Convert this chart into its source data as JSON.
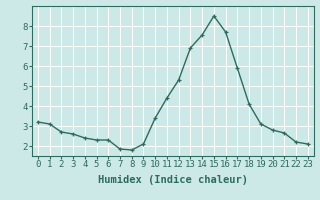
{
  "x": [
    0,
    1,
    2,
    3,
    4,
    5,
    6,
    7,
    8,
    9,
    10,
    11,
    12,
    13,
    14,
    15,
    16,
    17,
    18,
    19,
    20,
    21,
    22,
    23
  ],
  "y": [
    3.2,
    3.1,
    2.7,
    2.6,
    2.4,
    2.3,
    2.3,
    1.85,
    1.8,
    2.1,
    3.4,
    4.4,
    5.3,
    6.9,
    7.55,
    8.5,
    7.7,
    5.9,
    4.1,
    3.1,
    2.8,
    2.65,
    2.2,
    2.1
  ],
  "line_color": "#2e6b5e",
  "marker": "+",
  "marker_size": 3,
  "linewidth": 1.0,
  "xlabel": "Humidex (Indice chaleur)",
  "ylabel": "",
  "xlim": [
    -0.5,
    23.5
  ],
  "ylim": [
    1.5,
    9.0
  ],
  "yticks": [
    2,
    3,
    4,
    5,
    6,
    7,
    8
  ],
  "xticks": [
    0,
    1,
    2,
    3,
    4,
    5,
    6,
    7,
    8,
    9,
    10,
    11,
    12,
    13,
    14,
    15,
    16,
    17,
    18,
    19,
    20,
    21,
    22,
    23
  ],
  "bg_color": "#cce9e8",
  "grid_color": "#ffffff",
  "tick_fontsize": 6.5,
  "xlabel_fontsize": 7.5,
  "spine_color": "#2e6b5e",
  "axis_label_color": "#2e6b5e",
  "tick_label_color": "#2e6b5e"
}
